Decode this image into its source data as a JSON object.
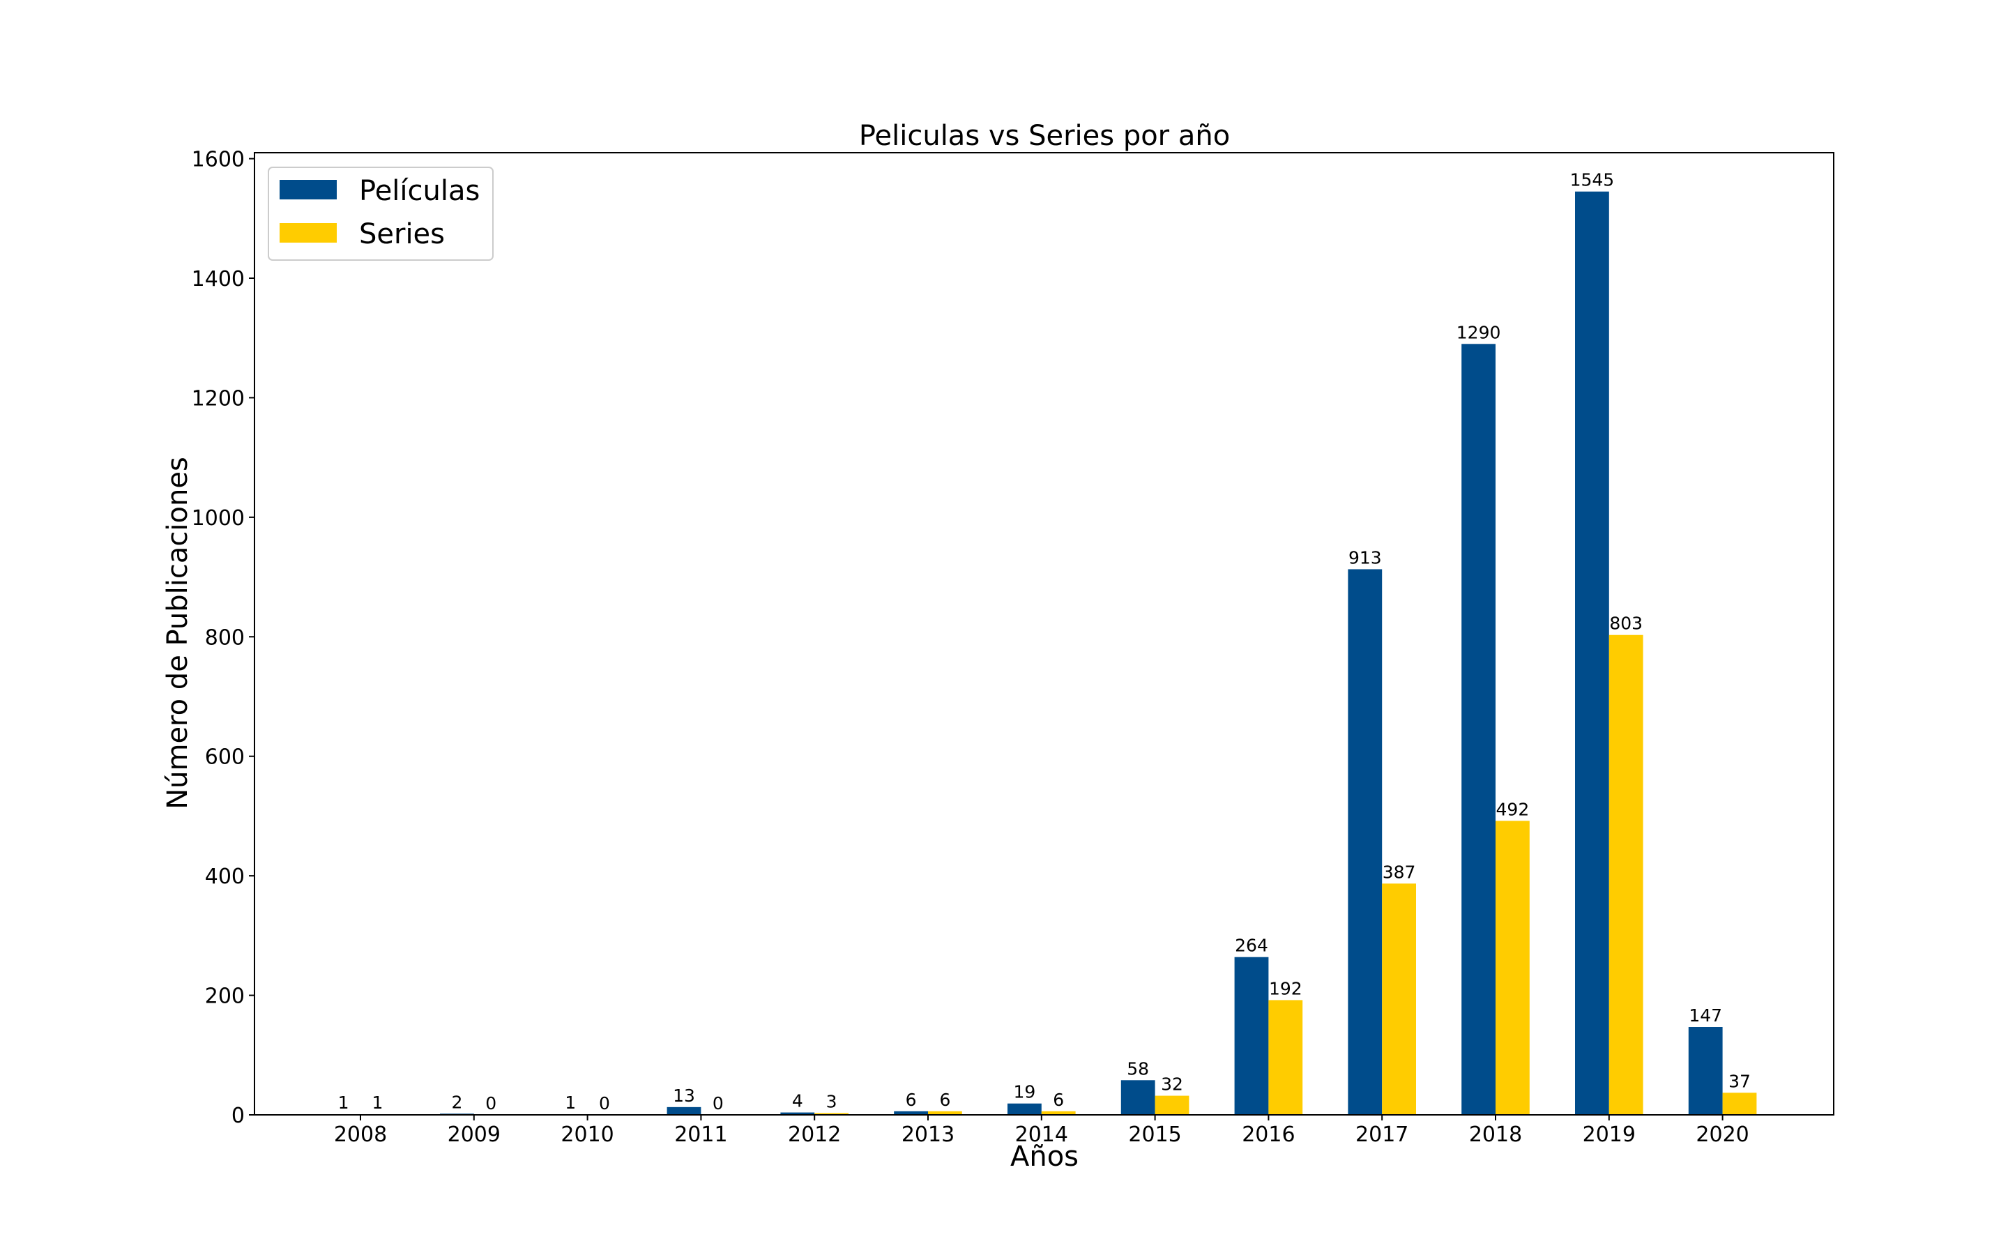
{
  "chart_data": {
    "type": "bar",
    "title": "Peliculas vs Series por año",
    "xlabel": "Años",
    "ylabel": "Número de Publicaciones",
    "categories": [
      "2008",
      "2009",
      "2010",
      "2011",
      "2012",
      "2013",
      "2014",
      "2015",
      "2016",
      "2017",
      "2018",
      "2019",
      "2020"
    ],
    "series": [
      {
        "name": "Películas",
        "color": "#004c8b",
        "values": [
          1,
          2,
          1,
          13,
          4,
          6,
          19,
          58,
          264,
          913,
          1290,
          1545,
          147
        ]
      },
      {
        "name": "Series",
        "color": "#ffcc00",
        "values": [
          1,
          0,
          0,
          0,
          3,
          6,
          6,
          32,
          192,
          387,
          492,
          803,
          37
        ]
      }
    ],
    "ylim": [
      0,
      1610
    ],
    "yticks": [
      "0",
      "200",
      "400",
      "600",
      "800",
      "1000",
      "1200",
      "1400",
      "1600"
    ],
    "grid": false,
    "legend_position": "top-left"
  }
}
